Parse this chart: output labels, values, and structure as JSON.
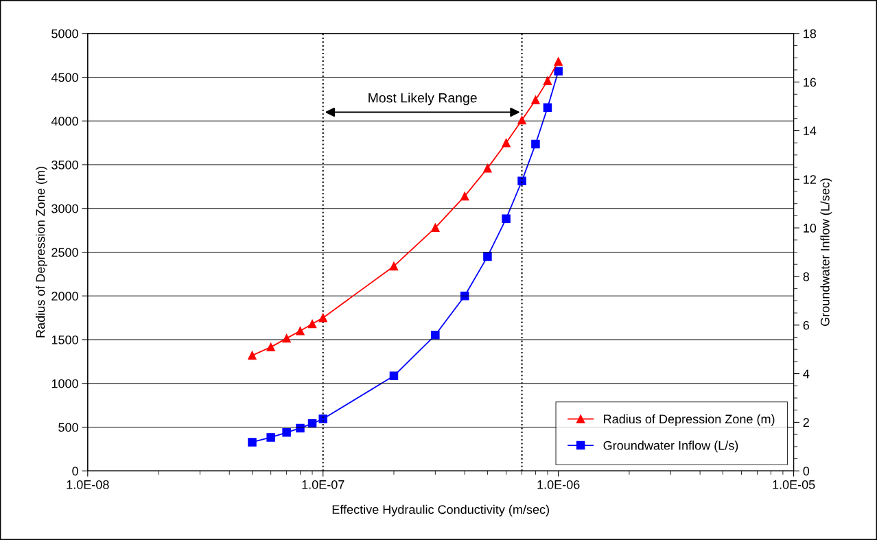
{
  "chart_data": {
    "type": "line",
    "xlabel": "Effective Hydraulic Conductivity (m/sec)",
    "ylabel": "Radius of Depression Zone (m)",
    "y2label": "Groundwater Inflow (L/sec)",
    "x": [
      5e-08,
      6e-08,
      7e-08,
      8e-08,
      9e-08,
      1e-07,
      2e-07,
      3e-07,
      4e-07,
      5e-07,
      6e-07,
      7e-07,
      8e-07,
      9e-07,
      1e-06
    ],
    "series": [
      {
        "name": "Radius of Depression Zone (m)",
        "color": "#ff0000",
        "marker": "triangle",
        "values": [
          1320,
          1415,
          1515,
          1600,
          1680,
          1750,
          2340,
          2780,
          3140,
          3460,
          3750,
          4010,
          4240,
          4460,
          4680
        ]
      },
      {
        "name": "Groundwater Inflow (L/s)",
        "color": "#0000ff",
        "marker": "square",
        "axis": "y2",
        "values": [
          1.18,
          1.38,
          1.58,
          1.76,
          1.95,
          2.14,
          3.91,
          5.59,
          7.2,
          8.82,
          10.38,
          11.93,
          13.45,
          14.95,
          16.45
        ]
      }
    ],
    "log": "x",
    "xlim": [
      1e-08,
      1e-05
    ],
    "xticks": [
      {
        "value": 1e-08,
        "label": "1.0E-08"
      },
      {
        "value": 1e-07,
        "label": "1.0E-07"
      },
      {
        "value": 1e-06,
        "label": "1.0E-06"
      },
      {
        "value": 1e-05,
        "label": "1.0E-05"
      }
    ],
    "ylim": [
      0,
      5000
    ],
    "yticks": [
      0,
      500,
      1000,
      1500,
      2000,
      2500,
      3000,
      3500,
      4000,
      4500,
      5000
    ],
    "y2lim": [
      0,
      18
    ],
    "y2ticks": [
      0,
      2,
      4,
      6,
      8,
      10,
      12,
      14,
      16,
      18
    ],
    "grid": "y",
    "legend": "bottom right",
    "ref_lines": [
      {
        "axis": "x",
        "value": 1e-07,
        "color": "#000000",
        "line_style": "dotted"
      },
      {
        "axis": "x",
        "value": 7e-07,
        "color": "#000000",
        "line_style": "dotted"
      }
    ],
    "annotations": [
      "Most Likely Range"
    ]
  }
}
